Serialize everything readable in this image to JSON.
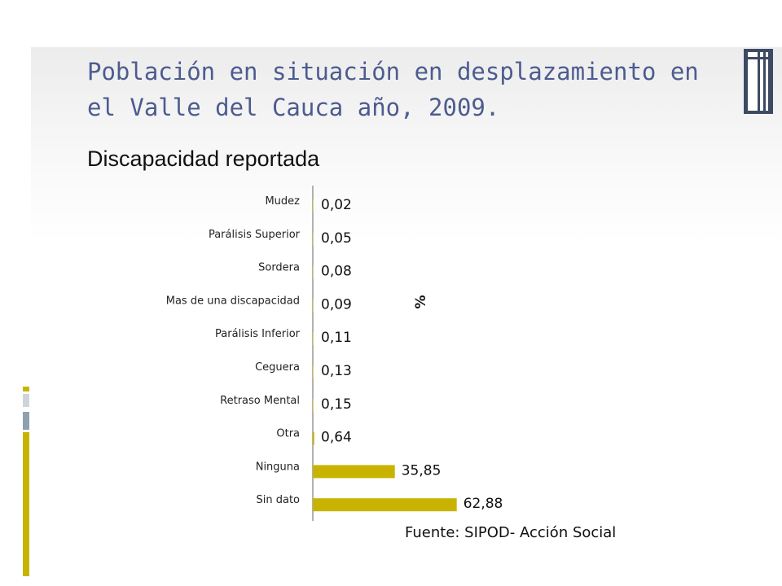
{
  "slide": {
    "title": "Población en situación en desplazamiento en el Valle del Cauca año, 2009.",
    "subtitle": "Discapacidad reportada",
    "source": "Fuente: SIPOD- Acción Social"
  },
  "colors": {
    "accent": "#c8b400",
    "title": "#4d5b8f"
  },
  "chart_data": {
    "type": "bar",
    "orientation": "horizontal",
    "ylabel": "%",
    "categories": [
      "Mudez",
      "Parálisis Superior",
      "Sordera",
      "Mas de una discapacidad",
      "Parálisis Inferior",
      "Ceguera",
      "Retraso Mental",
      "Otra",
      "Ninguna",
      "Sin dato"
    ],
    "values": [
      0.02,
      0.05,
      0.08,
      0.09,
      0.11,
      0.13,
      0.15,
      0.64,
      35.85,
      62.88
    ],
    "data_labels": [
      "0,02",
      "0,05",
      "0,08",
      "0,09",
      "0,11",
      "0,13",
      "0,15",
      "0,64",
      "35,85",
      "62,88"
    ],
    "xlim": [
      0,
      100
    ],
    "bar_color": "#c8b400",
    "grid": false,
    "legend": "none"
  }
}
